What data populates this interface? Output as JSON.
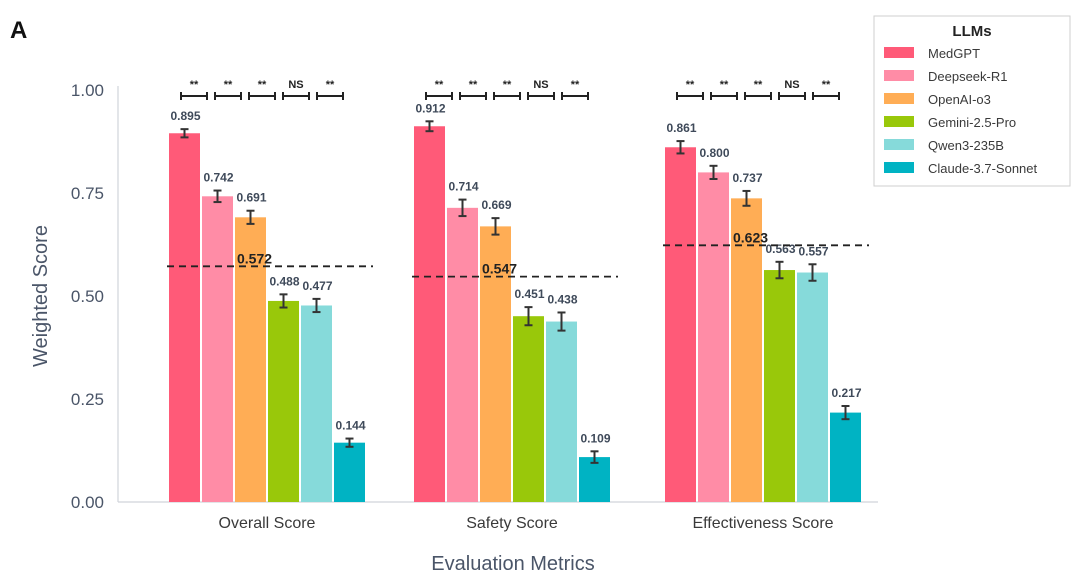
{
  "panel_label": "A",
  "chart_data": {
    "type": "bar",
    "title": "",
    "xlabel": "Evaluation Metrics",
    "ylabel": "Weighted Score",
    "ylim": [
      0,
      1.0
    ],
    "yticks": [
      "0.00",
      "0.25",
      "0.50",
      "0.75",
      "1.00"
    ],
    "ytick_values": [
      0,
      0.25,
      0.5,
      0.75,
      1.0
    ],
    "grid": false,
    "categories": [
      "Overall Score",
      "Safety Score",
      "Effectiveness Score"
    ],
    "legend": {
      "title": "LLMs",
      "placement": "top-right"
    },
    "series": [
      {
        "name": "MedGPT",
        "color": "#ff5a78",
        "values": [
          0.895,
          0.912,
          0.861
        ],
        "labels": [
          "0.895",
          "0.912",
          "0.861"
        ],
        "errors": [
          0.01,
          0.012,
          0.015
        ]
      },
      {
        "name": "Deepseek-R1",
        "color": "#ff8ca6",
        "values": [
          0.742,
          0.714,
          0.8
        ],
        "labels": [
          "0.742",
          "0.714",
          "0.800"
        ],
        "errors": [
          0.014,
          0.02,
          0.016
        ]
      },
      {
        "name": "OpenAI-o3",
        "color": "#ffad55",
        "values": [
          0.691,
          0.669,
          0.737
        ],
        "labels": [
          "0.691",
          "0.669",
          "0.737"
        ],
        "errors": [
          0.016,
          0.02,
          0.018
        ]
      },
      {
        "name": "Gemini-2.5-Pro",
        "color": "#99c80a",
        "values": [
          0.488,
          0.451,
          0.563
        ],
        "labels": [
          "0.488",
          "0.451",
          "0.563"
        ],
        "errors": [
          0.016,
          0.022,
          0.02
        ]
      },
      {
        "name": "Qwen3-235B",
        "color": "#86dada",
        "values": [
          0.477,
          0.438,
          0.557
        ],
        "labels": [
          "0.477",
          "0.438",
          "0.557"
        ],
        "errors": [
          0.016,
          0.022,
          0.02
        ]
      },
      {
        "name": "Claude-3.7-Sonnet",
        "color": "#00b3c3",
        "values": [
          0.144,
          0.109,
          0.217
        ],
        "labels": [
          "0.144",
          "0.109",
          "0.217"
        ],
        "errors": [
          0.01,
          0.014,
          0.016
        ]
      }
    ],
    "mean_lines": [
      {
        "value": 0.572,
        "label": "0.572"
      },
      {
        "value": 0.547,
        "label": "0.547"
      },
      {
        "value": 0.623,
        "label": "0.623"
      }
    ],
    "significance": [
      [
        "**",
        "**",
        "**",
        "NS",
        "**"
      ],
      [
        "**",
        "**",
        "**",
        "NS",
        "**"
      ],
      [
        "**",
        "**",
        "**",
        "NS",
        "**"
      ]
    ]
  }
}
